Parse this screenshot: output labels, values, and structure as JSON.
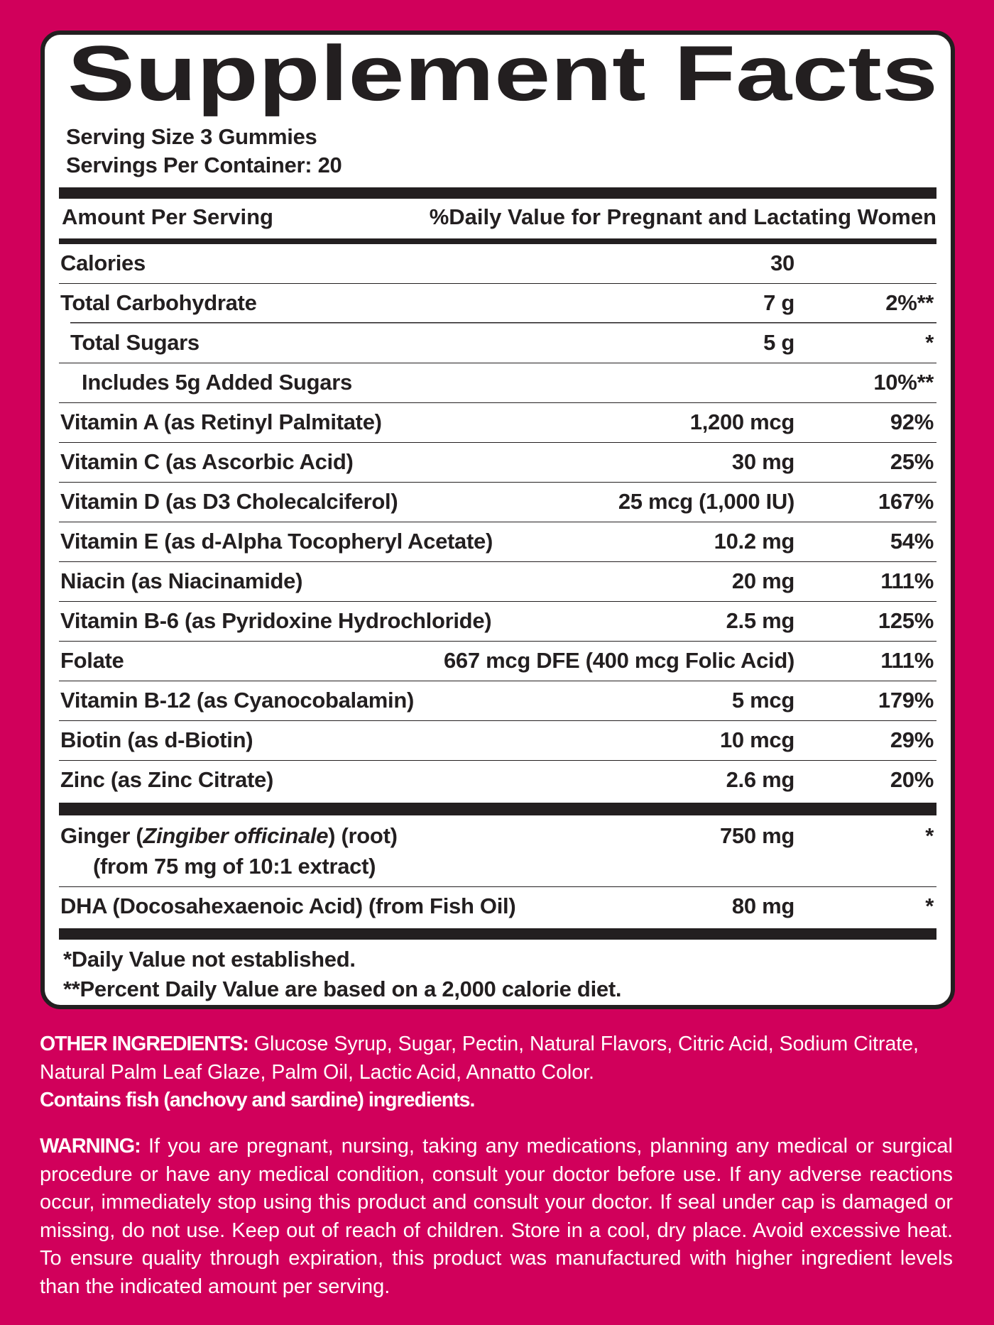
{
  "header": {
    "title": "Supplement Facts",
    "serving_size": "Serving Size 3 Gummies",
    "servings_per_container": "Servings Per Container: 20"
  },
  "table": {
    "columns": [
      "Amount Per Serving",
      "%Daily Value for Pregnant and Lactating Women"
    ],
    "rows": [
      {
        "name": "Calories",
        "amount": "30"
      },
      {
        "name": "Total Carbohydrate",
        "amount": "7 g",
        "daily_value": "2%**"
      },
      {
        "name": "Total Sugars",
        "amount": "5 g",
        "daily_value": "*"
      },
      {
        "name": "Includes 5g Added Sugars",
        "daily_value": "10%**"
      },
      {
        "name": "Vitamin A (as Retinyl Palmitate)",
        "amount": "1,200 mcg",
        "daily_value": "92%"
      },
      {
        "name": "Vitamin C (as Ascorbic Acid)",
        "amount": "30 mg",
        "daily_value": "25%"
      },
      {
        "name": "Vitamin D (as D3 Cholecalciferol)",
        "amount": "25 mcg (1,000 IU)",
        "daily_value": "167%"
      },
      {
        "name": "Vitamin E (as d-Alpha Tocopheryl Acetate)",
        "amount": "10.2 mg",
        "daily_value": "54%"
      },
      {
        "name": "Niacin (as Niacinamide)",
        "amount": "20 mg",
        "daily_value": "111%"
      },
      {
        "name": "Vitamin B-6 (as Pyridoxine Hydrochloride)",
        "amount": "2.5 mg",
        "daily_value": "125%"
      },
      {
        "name": "Folate",
        "amount": "667 mcg DFE (400 mcg Folic Acid)",
        "daily_value": "111%"
      },
      {
        "name": "Vitamin B-12 (as Cyanocobalamin)",
        "amount": "5 mcg",
        "daily_value": "179%"
      },
      {
        "name": "Biotin (as d-Biotin)",
        "amount": "10 mcg",
        "daily_value": "29%"
      },
      {
        "name": "Zinc (as Zinc Citrate)",
        "amount": "2.6 mg",
        "daily_value": "20%"
      }
    ],
    "other_rows": [
      {
        "name": [
          "Ginger (",
          "Zingiber officinale",
          ") (root)"
        ],
        "note": "(from 75 mg of 10:1 extract)",
        "amount": "750 mg",
        "daily_value": "*"
      },
      {
        "name": [
          "DHA (Docosahexaenoic Acid) (from Fish Oil)"
        ],
        "amount": "80 mg",
        "daily_value": "*"
      }
    ],
    "footnotes": [
      "*Daily Value not established.",
      "**Percent Daily Value are based on a 2,000 calorie diet."
    ]
  },
  "other_ingredients": {
    "label": "OTHER INGREDIENTS:",
    "text": "Glucose Syrup, Sugar, Pectin, Natural Flavors, Citric Acid, Sodium Citrate, Natural Palm Leaf Glaze, Palm Oil, Lactic Acid, Annatto Color.",
    "allergen": "Contains fish (anchovy and sardine) ingredients."
  },
  "warning": {
    "label": "WARNING:",
    "text": "If you are pregnant, nursing, taking any medications, planning any medical or surgical procedure or have any medical condition, consult your doctor before use. If any adverse reactions occur, immediately stop using this product and consult your doctor. If seal under cap is damaged or missing, do not use. Keep out of reach of children. Store in a cool, dry place. Avoid excessive heat. To ensure quality through expiration, this product was manufactured with higher ingredient levels than the indicated amount per serving."
  }
}
